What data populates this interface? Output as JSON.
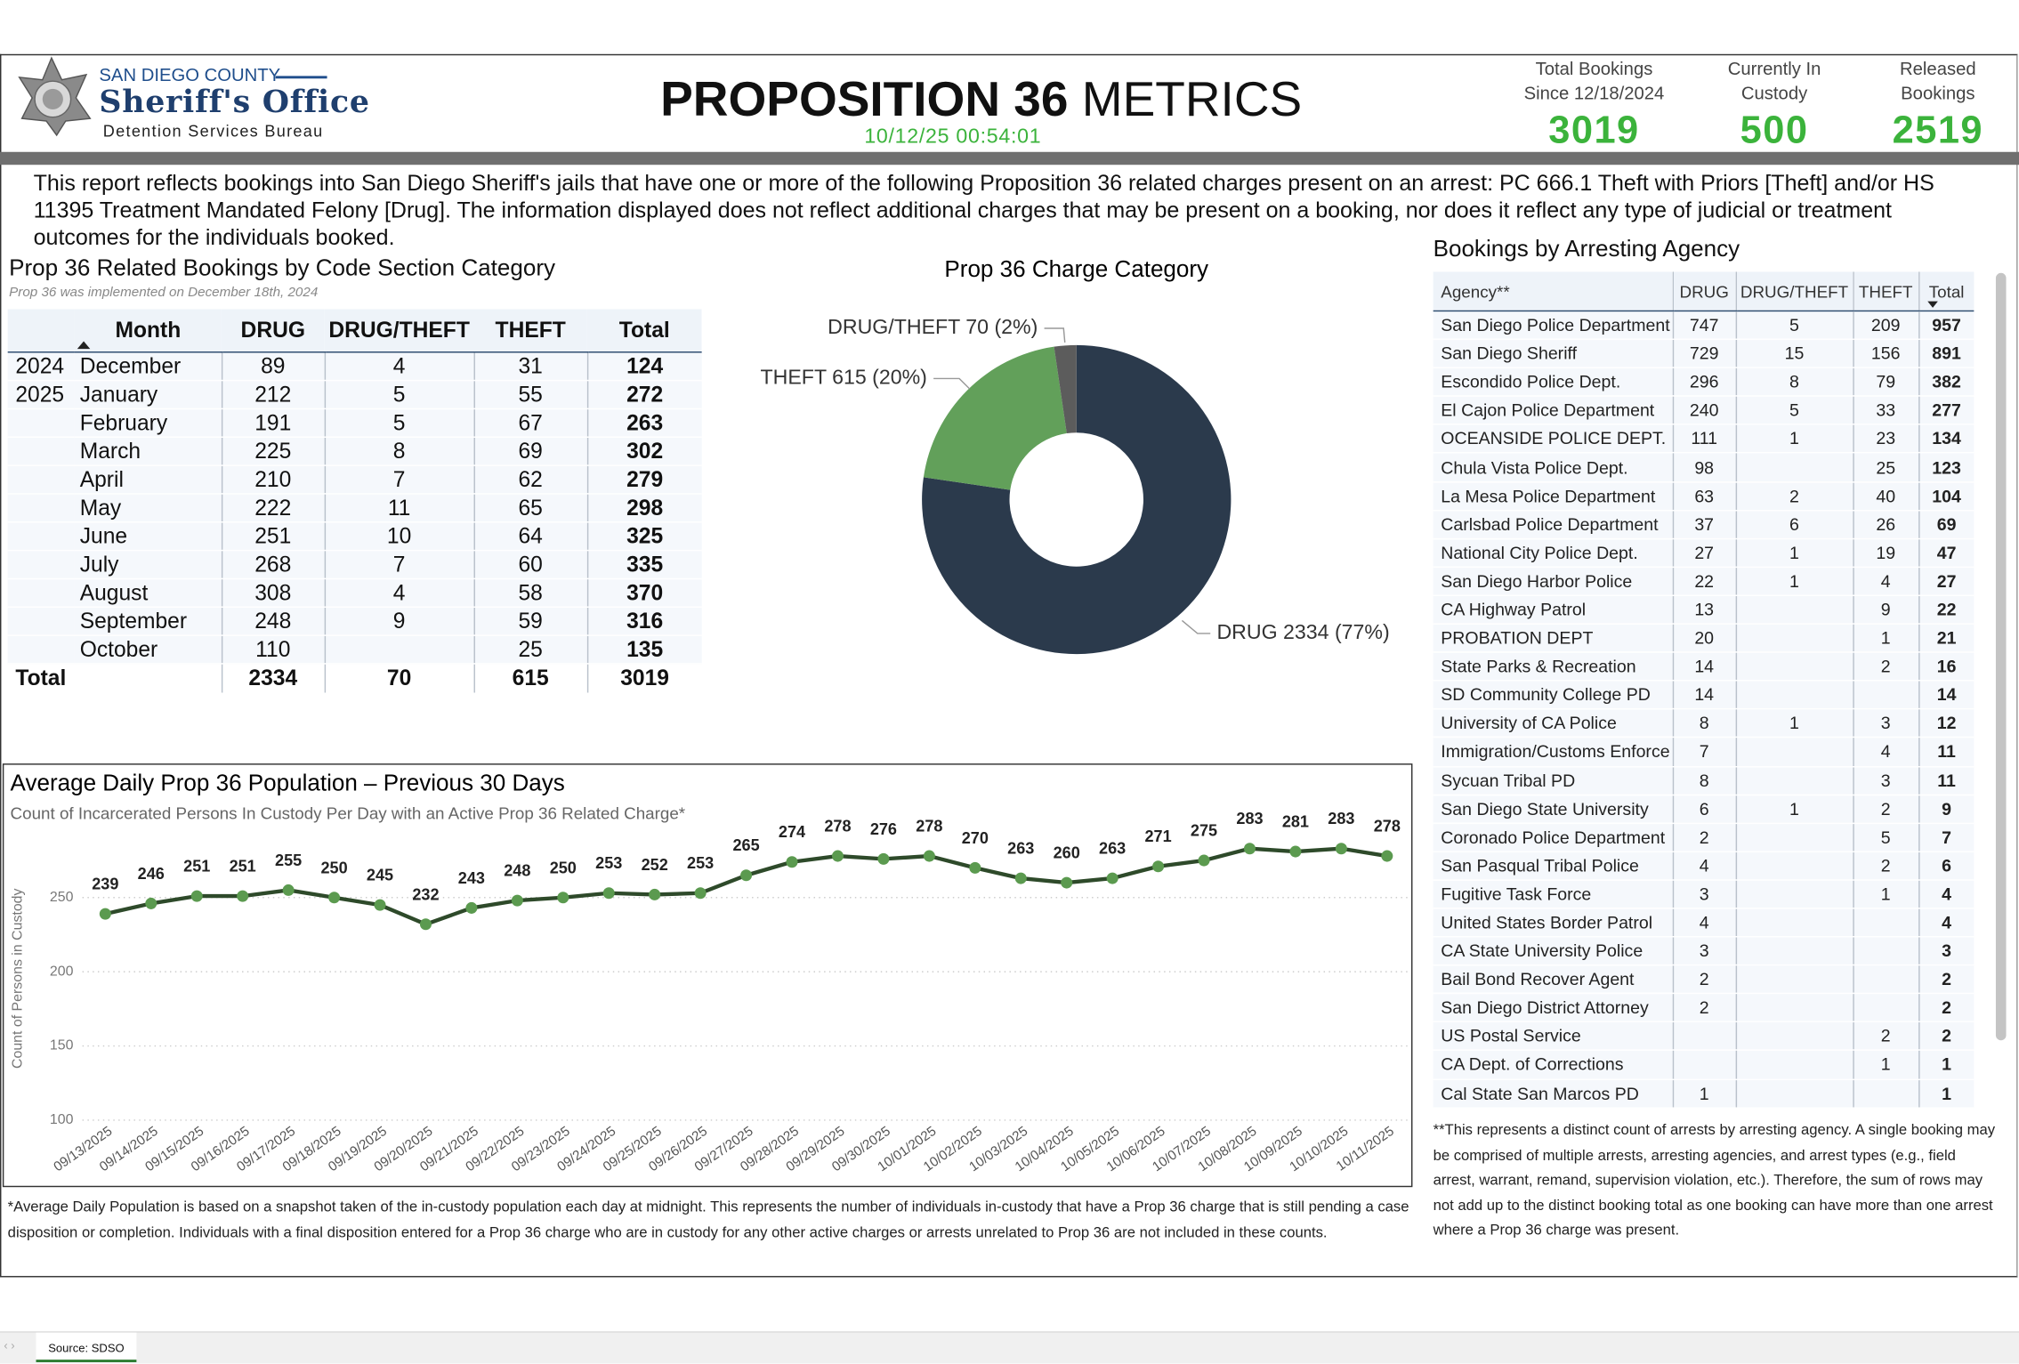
{
  "header": {
    "agency_line1": "SAN DIEGO COUNTY",
    "agency_line2": "Sheriff's Office",
    "agency_line3": "Detention Services Bureau",
    "title_bold": "PROPOSITION 36",
    "title_rest": "METRICS",
    "timestamp": "10/12/25 00:54:01",
    "kpis": [
      {
        "label": "Total Bookings Since 12/18/2024",
        "value": 3019
      },
      {
        "label": "Currently In Custody",
        "value": 500
      },
      {
        "label": "Released Bookings",
        "value": 2519
      }
    ]
  },
  "description": "This report reflects bookings into San Diego Sheriff's jails that have one or more of the following Proposition 36 related charges present on an arrest: PC 666.1 Theft with Priors [Theft] and/or HS 11395 Treatment Mandated Felony [Drug]. The information displayed does not reflect additional charges that may be present on a booking, nor does it reflect any type of judicial or treatment outcomes for the individuals booked.",
  "bookings_table": {
    "title": "Prop 36 Related Bookings by Code Section Category",
    "note": "Prop 36 was implemented on December 18th, 2024",
    "columns": [
      "Month",
      "DRUG",
      "DRUG/THEFT",
      "THEFT",
      "Total"
    ],
    "rows": [
      [
        "2024",
        "December",
        89,
        4,
        31,
        124
      ],
      [
        "2025",
        "January",
        212,
        5,
        55,
        272
      ],
      [
        null,
        "February",
        191,
        5,
        67,
        263
      ],
      [
        null,
        "March",
        225,
        8,
        69,
        302
      ],
      [
        null,
        "April",
        210,
        7,
        62,
        279
      ],
      [
        null,
        "May",
        222,
        11,
        65,
        298
      ],
      [
        null,
        "June",
        251,
        10,
        64,
        325
      ],
      [
        null,
        "July",
        268,
        7,
        60,
        335
      ],
      [
        null,
        "August",
        308,
        4,
        58,
        370
      ],
      [
        null,
        "September",
        248,
        9,
        59,
        316
      ],
      [
        null,
        "October",
        110,
        null,
        25,
        135
      ]
    ],
    "total": {
      "label": "Total",
      "values": [
        2334,
        70,
        615,
        3019
      ]
    }
  },
  "agency_table": {
    "title": "Bookings by Arresting Agency",
    "columns": [
      "Agency**",
      "DRUG",
      "DRUG/THEFT",
      "THEFT",
      "Total"
    ],
    "rows": [
      [
        "San Diego Police Department",
        747,
        5,
        209,
        957
      ],
      [
        "San Diego Sheriff",
        729,
        15,
        156,
        891
      ],
      [
        "Escondido Police Dept.",
        296,
        8,
        79,
        382
      ],
      [
        "El Cajon Police Department",
        240,
        5,
        33,
        277
      ],
      [
        "OCEANSIDE POLICE DEPT.",
        111,
        1,
        23,
        134
      ],
      [
        "Chula Vista Police Dept.",
        98,
        null,
        25,
        123
      ],
      [
        "La Mesa Police Department",
        63,
        2,
        40,
        104
      ],
      [
        "Carlsbad Police Department",
        37,
        6,
        26,
        69
      ],
      [
        "National City Police Dept.",
        27,
        1,
        19,
        47
      ],
      [
        "San Diego Harbor Police",
        22,
        1,
        4,
        27
      ],
      [
        "CA Highway Patrol",
        13,
        null,
        9,
        22
      ],
      [
        "PROBATION DEPT",
        20,
        null,
        1,
        21
      ],
      [
        "State Parks & Recreation",
        14,
        null,
        2,
        16
      ],
      [
        "SD Community College PD",
        14,
        null,
        null,
        14
      ],
      [
        "University of CA Police",
        8,
        1,
        3,
        12
      ],
      [
        "Immigration/Customs Enforce",
        7,
        null,
        4,
        11
      ],
      [
        "Sycuan Tribal PD",
        8,
        null,
        3,
        11
      ],
      [
        "San Diego State University",
        6,
        1,
        2,
        9
      ],
      [
        "Coronado Police Department",
        2,
        null,
        5,
        7
      ],
      [
        "San Pasqual Tribal Police",
        4,
        null,
        2,
        6
      ],
      [
        "Fugitive Task Force",
        3,
        null,
        1,
        4
      ],
      [
        "United States Border Patrol",
        4,
        null,
        null,
        4
      ],
      [
        "CA State University Police",
        3,
        null,
        null,
        3
      ],
      [
        "Bail Bond Recover Agent",
        2,
        null,
        null,
        2
      ],
      [
        "San Diego District Attorney",
        2,
        null,
        null,
        2
      ],
      [
        "US Postal Service",
        null,
        null,
        2,
        2
      ],
      [
        "CA Dept. of Corrections",
        null,
        null,
        1,
        1
      ],
      [
        "Cal State San Marcos PD",
        1,
        null,
        null,
        1
      ]
    ],
    "footnote": "**This represents a distinct count of arrests by arresting agency. A single booking may be comprised of multiple arrests, arresting agencies, and arrest types (e.g., field arrest, warrant, remand, supervision violation, etc.). Therefore, the sum of rows may not add up to the distinct booking total as one booking can have more than one arrest where a Prop 36 charge was present."
  },
  "chart_data": [
    {
      "type": "pie",
      "title": "Prop 36 Charge Category",
      "categories": [
        "DRUG",
        "THEFT",
        "DRUG/THEFT"
      ],
      "values": [
        2334,
        615,
        70
      ],
      "data_labels": [
        "DRUG 2334 (77%)",
        "THEFT 615 (20%)",
        "DRUG/THEFT 70 (2%)"
      ],
      "colors": [
        "#2b3a4c",
        "#62a05a",
        "#5c5c5c"
      ],
      "donut": true
    },
    {
      "type": "line",
      "title": "Average Daily Prop 36 Population – Previous 30 Days",
      "subtitle": "Count of Incarcerated Persons In Custody Per Day with an Active Prop 36 Related Charge*",
      "y_label": "Count of Persons in Custody",
      "categories": [
        "09/13/2025",
        "09/14/2025",
        "09/15/2025",
        "09/16/2025",
        "09/17/2025",
        "09/18/2025",
        "09/19/2025",
        "09/20/2025",
        "09/21/2025",
        "09/22/2025",
        "09/23/2025",
        "09/24/2025",
        "09/25/2025",
        "09/26/2025",
        "09/27/2025",
        "09/28/2025",
        "09/29/2025",
        "09/30/2025",
        "10/01/2025",
        "10/02/2025",
        "10/03/2025",
        "10/04/2025",
        "10/05/2025",
        "10/06/2025",
        "10/07/2025",
        "10/08/2025",
        "10/09/2025",
        "10/10/2025",
        "10/11/2025"
      ],
      "values": [
        239,
        246,
        251,
        251,
        255,
        250,
        245,
        232,
        243,
        248,
        250,
        253,
        252,
        253,
        265,
        274,
        278,
        276,
        278,
        270,
        263,
        260,
        263,
        271,
        275,
        283,
        281,
        283,
        278
      ],
      "color": "#2e4a2a",
      "marker_color": "#5b9a4f",
      "ylim": [
        100,
        290
      ],
      "yticks": [
        100,
        150,
        200,
        250
      ],
      "grid": true,
      "footnote": "*Average Daily Population is based on a snapshot taken of the in-custody population each day at midnight. This represents the number of individuals in-custody that have a Prop 36 charge that is still pending a case disposition or completion. Individuals with a final disposition entered for a Prop 36 charge who are in custody for any other active charges or arrests unrelated to Prop 36 are not included in these counts."
    }
  ],
  "footer": {
    "tab": "Source: SDSO"
  }
}
